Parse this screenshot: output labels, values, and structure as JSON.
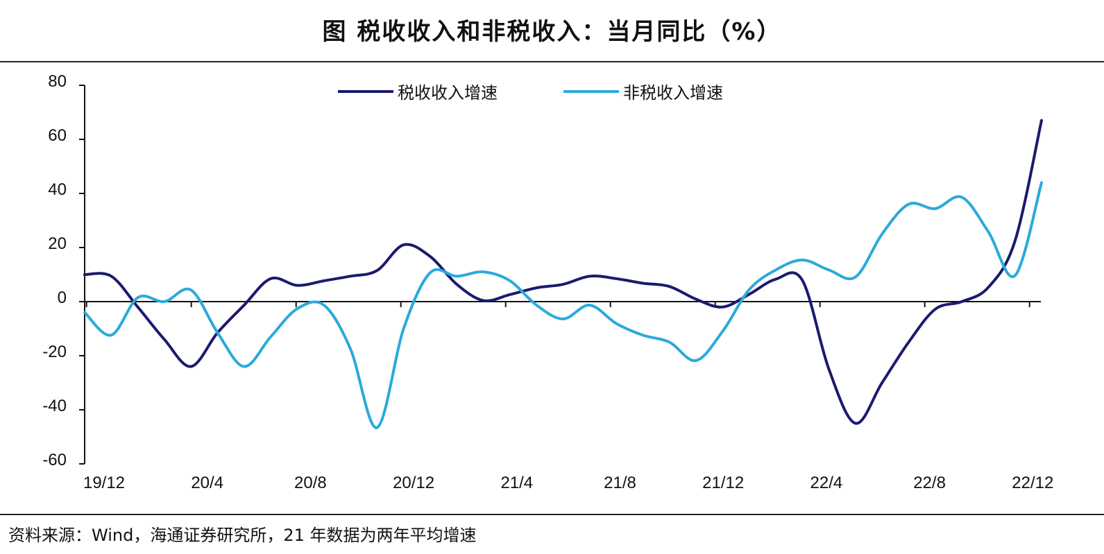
{
  "title": "图  税收收入和非税收入：当月同比（%）",
  "source": "资料来源：Wind，海通证券研究所，21 年数据为两年平均增速",
  "chart_data": {
    "type": "line",
    "title": "图  税收收入和非税收入：当月同比（%）",
    "xlabel": "",
    "ylabel": "",
    "ylim": [
      -60,
      80
    ],
    "yticks": [
      80,
      60,
      40,
      20,
      0,
      -20,
      -40,
      -60
    ],
    "xtick_labels": [
      "19/12",
      "20/4",
      "20/8",
      "20/12",
      "21/4",
      "21/8",
      "21/12",
      "22/4",
      "22/8",
      "22/12"
    ],
    "x": [
      "19/12",
      "20/1",
      "20/2",
      "20/3",
      "20/4",
      "20/5",
      "20/6",
      "20/7",
      "20/8",
      "20/9",
      "20/10",
      "20/11",
      "20/12",
      "21/1",
      "21/2",
      "21/3",
      "21/4",
      "21/5",
      "21/6",
      "21/7",
      "21/8",
      "21/9",
      "21/10",
      "21/11",
      "21/12",
      "22/1",
      "22/2",
      "22/3",
      "22/4",
      "22/5",
      "22/6",
      "22/7",
      "22/8",
      "22/9",
      "22/10",
      "22/11",
      "22/12"
    ],
    "grid": false,
    "legend_placement": "top-center",
    "smooth": true,
    "series": [
      {
        "name": "税收收入增速",
        "color": "#1b1a6e",
        "values": [
          10,
          9.4,
          -2,
          -14,
          -24,
          -11.5,
          -1.3,
          8.5,
          6,
          7.7,
          9.4,
          11.5,
          21,
          16.7,
          6.4,
          0.4,
          2.6,
          5.1,
          6.4,
          9.4,
          8.5,
          6.8,
          5.6,
          0.9,
          -2,
          2.7,
          8.3,
          7.9,
          -25,
          -45,
          -30,
          -15,
          -2.8,
          0,
          5.3,
          22.4,
          67
        ]
      },
      {
        "name": "非税收入增速",
        "color": "#2aaadb",
        "values": [
          -4,
          -12.4,
          1.5,
          0,
          4.3,
          -11.5,
          -24,
          -13,
          -2.6,
          -1.3,
          -17.5,
          -46.6,
          -10,
          10.7,
          9.4,
          11,
          7.7,
          -1.3,
          -6.4,
          -1.3,
          -8.1,
          -12.4,
          -15,
          -21.8,
          -11,
          4.4,
          11.7,
          15.4,
          11.7,
          9.1,
          25,
          36,
          34.4,
          38.6,
          25.8,
          9.6,
          44
        ]
      }
    ]
  }
}
